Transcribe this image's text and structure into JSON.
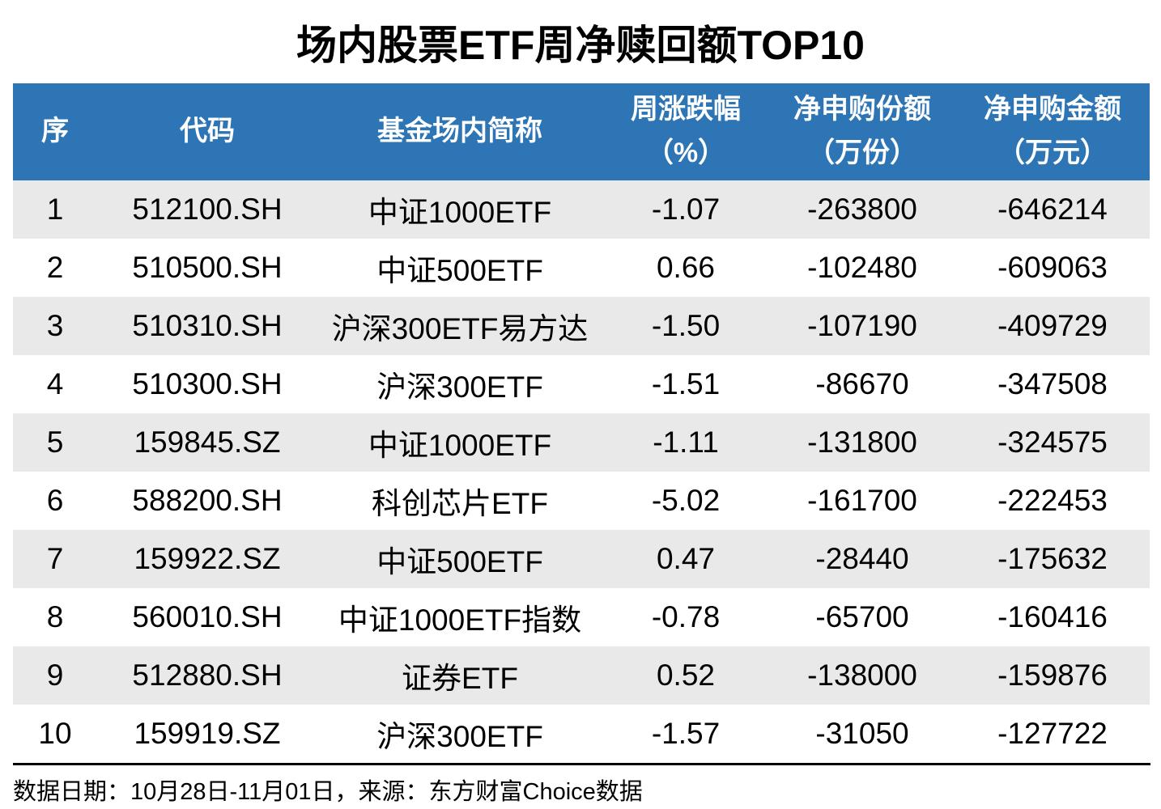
{
  "title": "场内股票ETF周净赎回额TOP10",
  "table": {
    "headers": [
      {
        "id": "rank",
        "line1": "序",
        "line2": ""
      },
      {
        "id": "code",
        "line1": "代码",
        "line2": ""
      },
      {
        "id": "name",
        "line1": "基金场内简称",
        "line2": ""
      },
      {
        "id": "weekly-change",
        "line1": "周涨跌幅",
        "line2": "（%）"
      },
      {
        "id": "net-subscription-shares",
        "line1": "净申购份额",
        "line2": "（万份）"
      },
      {
        "id": "net-subscription-amount",
        "line1": "净申购金额",
        "line2": "（万元）"
      }
    ],
    "rows": [
      [
        "1",
        "512100.SH",
        "中证1000ETF",
        "-1.07",
        "-263800",
        "-646214"
      ],
      [
        "2",
        "510500.SH",
        "中证500ETF",
        "0.66",
        "-102480",
        "-609063"
      ],
      [
        "3",
        "510310.SH",
        "沪深300ETF易方达",
        "-1.50",
        "-107190",
        "-409729"
      ],
      [
        "4",
        "510300.SH",
        "沪深300ETF",
        "-1.51",
        "-86670",
        "-347508"
      ],
      [
        "5",
        "159845.SZ",
        "中证1000ETF",
        "-1.11",
        "-131800",
        "-324575"
      ],
      [
        "6",
        "588200.SH",
        "科创芯片ETF",
        "-5.02",
        "-161700",
        "-222453"
      ],
      [
        "7",
        "159922.SZ",
        "中证500ETF",
        "0.47",
        "-28440",
        "-175632"
      ],
      [
        "8",
        "560010.SH",
        "中证1000ETF指数",
        "-0.78",
        "-65700",
        "-160416"
      ],
      [
        "9",
        "512880.SH",
        "证券ETF",
        "0.52",
        "-138000",
        "-159876"
      ],
      [
        "10",
        "159919.SZ",
        "沪深300ETF",
        "-1.57",
        "-31050",
        "-127722"
      ]
    ]
  },
  "footer": {
    "text": "数据日期：10月28日-11月01日，来源：东方财富Choice数据"
  },
  "colors": {
    "header_bg": "#2E75B6",
    "header_text": "#FFFFFF",
    "stripe_bg": "#E9E9E9",
    "rule_color": "#000000",
    "body_text": "#000000"
  },
  "chart_data": {
    "type": "table",
    "title": "场内股票ETF周净赎回额TOP10",
    "columns": [
      "序",
      "代码",
      "基金场内简称",
      "周涨跌幅（%）",
      "净申购份额（万份）",
      "净申购金额（万元）"
    ],
    "rows": [
      [
        1,
        "512100.SH",
        "中证1000ETF",
        -1.07,
        -263800,
        -646214
      ],
      [
        2,
        "510500.SH",
        "中证500ETF",
        0.66,
        -102480,
        -609063
      ],
      [
        3,
        "510310.SH",
        "沪深300ETF易方达",
        -1.5,
        -107190,
        -409729
      ],
      [
        4,
        "510300.SH",
        "沪深300ETF",
        -1.51,
        -86670,
        -347508
      ],
      [
        5,
        "159845.SZ",
        "中证1000ETF",
        -1.11,
        -131800,
        -324575
      ],
      [
        6,
        "588200.SH",
        "科创芯片ETF",
        -5.02,
        -161700,
        -222453
      ],
      [
        7,
        "159922.SZ",
        "中证500ETF",
        0.47,
        -28440,
        -175632
      ],
      [
        8,
        "560010.SH",
        "中证1000ETF指数",
        -0.78,
        -65700,
        -160416
      ],
      [
        9,
        "512880.SH",
        "证券ETF",
        0.52,
        -138000,
        -159876
      ],
      [
        10,
        "159919.SZ",
        "沪深300ETF",
        -1.57,
        -31050,
        -127722
      ]
    ],
    "layout_hints": {
      "striped_rows": "odd rows gray",
      "header_style": "blue background, white bold text",
      "source_note": "数据日期：10月28日-11月01日，来源：东方财富Choice数据"
    }
  }
}
